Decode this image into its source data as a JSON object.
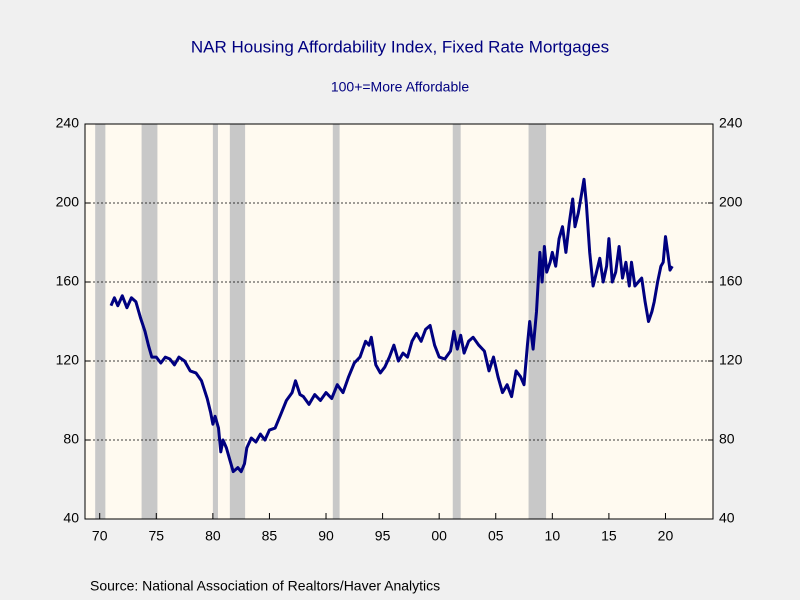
{
  "chart_data": {
    "type": "line",
    "title": "NAR Housing Affordability Index, Fixed Rate Mortgages",
    "subtitle": "100+=More Affordable",
    "source": "Source:  National Association of Realtors/Haver Analytics",
    "xlim": [
      1968.7,
      2024.2
    ],
    "xticks": [
      {
        "value": 1970,
        "label": "70"
      },
      {
        "value": 1975,
        "label": "75"
      },
      {
        "value": 1980,
        "label": "80"
      },
      {
        "value": 1985,
        "label": "85"
      },
      {
        "value": 1990,
        "label": "90"
      },
      {
        "value": 1995,
        "label": "95"
      },
      {
        "value": 2000,
        "label": "00"
      },
      {
        "value": 2005,
        "label": "05"
      },
      {
        "value": 2010,
        "label": "10"
      },
      {
        "value": 2015,
        "label": "15"
      },
      {
        "value": 2020,
        "label": "20"
      }
    ],
    "ylim": [
      40,
      240
    ],
    "yticks": [
      40,
      80,
      120,
      160,
      200,
      240
    ],
    "y2lim": [
      40,
      240
    ],
    "y2ticks": [
      40,
      80,
      120,
      160,
      200,
      240
    ],
    "grid": true,
    "shaded_periods": [
      [
        1969.6,
        1970.5
      ],
      [
        1973.7,
        1975.1
      ],
      [
        1980.0,
        1980.45
      ],
      [
        1981.5,
        1982.85
      ],
      [
        1990.6,
        1991.2
      ],
      [
        2001.2,
        2001.9
      ],
      [
        2007.9,
        2009.45
      ]
    ],
    "shade_color": "#c8c8c8",
    "series": [
      {
        "color": "#000080",
        "x": [
          1971.0,
          1971.3,
          1971.6,
          1972.0,
          1972.4,
          1972.8,
          1973.2,
          1973.6,
          1974.0,
          1974.3,
          1974.6,
          1975.0,
          1975.4,
          1975.8,
          1976.2,
          1976.6,
          1977.0,
          1977.5,
          1978.0,
          1978.5,
          1979.0,
          1979.5,
          1979.8,
          1980.0,
          1980.2,
          1980.5,
          1980.7,
          1980.9,
          1981.2,
          1981.5,
          1981.8,
          1982.2,
          1982.5,
          1982.8,
          1983.0,
          1983.4,
          1983.8,
          1984.2,
          1984.6,
          1985.0,
          1985.5,
          1986.0,
          1986.5,
          1987.0,
          1987.3,
          1987.7,
          1988.0,
          1988.5,
          1989.0,
          1989.5,
          1990.0,
          1990.5,
          1991.0,
          1991.5,
          1992.0,
          1992.5,
          1993.0,
          1993.5,
          1993.8,
          1994.0,
          1994.4,
          1994.8,
          1995.2,
          1995.6,
          1996.0,
          1996.4,
          1996.8,
          1997.2,
          1997.6,
          1998.0,
          1998.4,
          1998.8,
          1999.2,
          1999.6,
          2000.0,
          2000.5,
          2001.0,
          2001.3,
          2001.6,
          2001.9,
          2002.2,
          2002.6,
          2003.0,
          2003.5,
          2004.0,
          2004.4,
          2004.8,
          2005.2,
          2005.6,
          2006.0,
          2006.4,
          2006.8,
          2007.2,
          2007.5,
          2007.8,
          2008.0,
          2008.3,
          2008.6,
          2008.9,
          2009.1,
          2009.3,
          2009.5,
          2009.8,
          2010.0,
          2010.3,
          2010.6,
          2010.9,
          2011.2,
          2011.5,
          2011.8,
          2012.0,
          2012.3,
          2012.6,
          2012.8,
          2013.0,
          2013.3,
          2013.6,
          2013.9,
          2014.2,
          2014.5,
          2014.8,
          2015.0,
          2015.3,
          2015.6,
          2015.9,
          2016.2,
          2016.5,
          2016.8,
          2017.0,
          2017.3,
          2017.6,
          2017.9,
          2018.2,
          2018.5,
          2018.8,
          2019.0,
          2019.3,
          2019.6,
          2019.8,
          2020.0,
          2020.2,
          2020.4,
          2020.6
        ],
        "values": [
          148,
          152,
          148,
          153,
          147,
          152,
          150,
          142,
          135,
          128,
          122,
          122,
          119,
          122,
          121,
          118,
          122,
          120,
          115,
          114,
          110,
          101,
          94,
          88,
          92,
          86,
          74,
          80,
          76,
          70,
          64,
          66,
          64,
          68,
          76,
          81,
          79,
          83,
          80,
          85,
          86,
          93,
          100,
          104,
          110,
          103,
          102,
          98,
          103,
          100,
          104,
          101,
          108,
          104,
          112,
          119,
          122,
          130,
          128,
          132,
          118,
          114,
          117,
          122,
          128,
          120,
          124,
          122,
          130,
          134,
          130,
          136,
          138,
          128,
          122,
          121,
          125,
          135,
          126,
          133,
          124,
          130,
          132,
          128,
          125,
          115,
          122,
          112,
          104,
          108,
          102,
          115,
          112,
          108,
          128,
          140,
          126,
          145,
          175,
          160,
          178,
          165,
          170,
          175,
          168,
          182,
          188,
          175,
          190,
          202,
          188,
          195,
          205,
          212,
          200,
          175,
          158,
          165,
          172,
          160,
          168,
          182,
          160,
          165,
          178,
          162,
          170,
          158,
          170,
          158,
          160,
          162,
          150,
          140,
          145,
          150,
          160,
          168,
          170,
          183,
          175,
          166,
          168
        ]
      }
    ]
  }
}
